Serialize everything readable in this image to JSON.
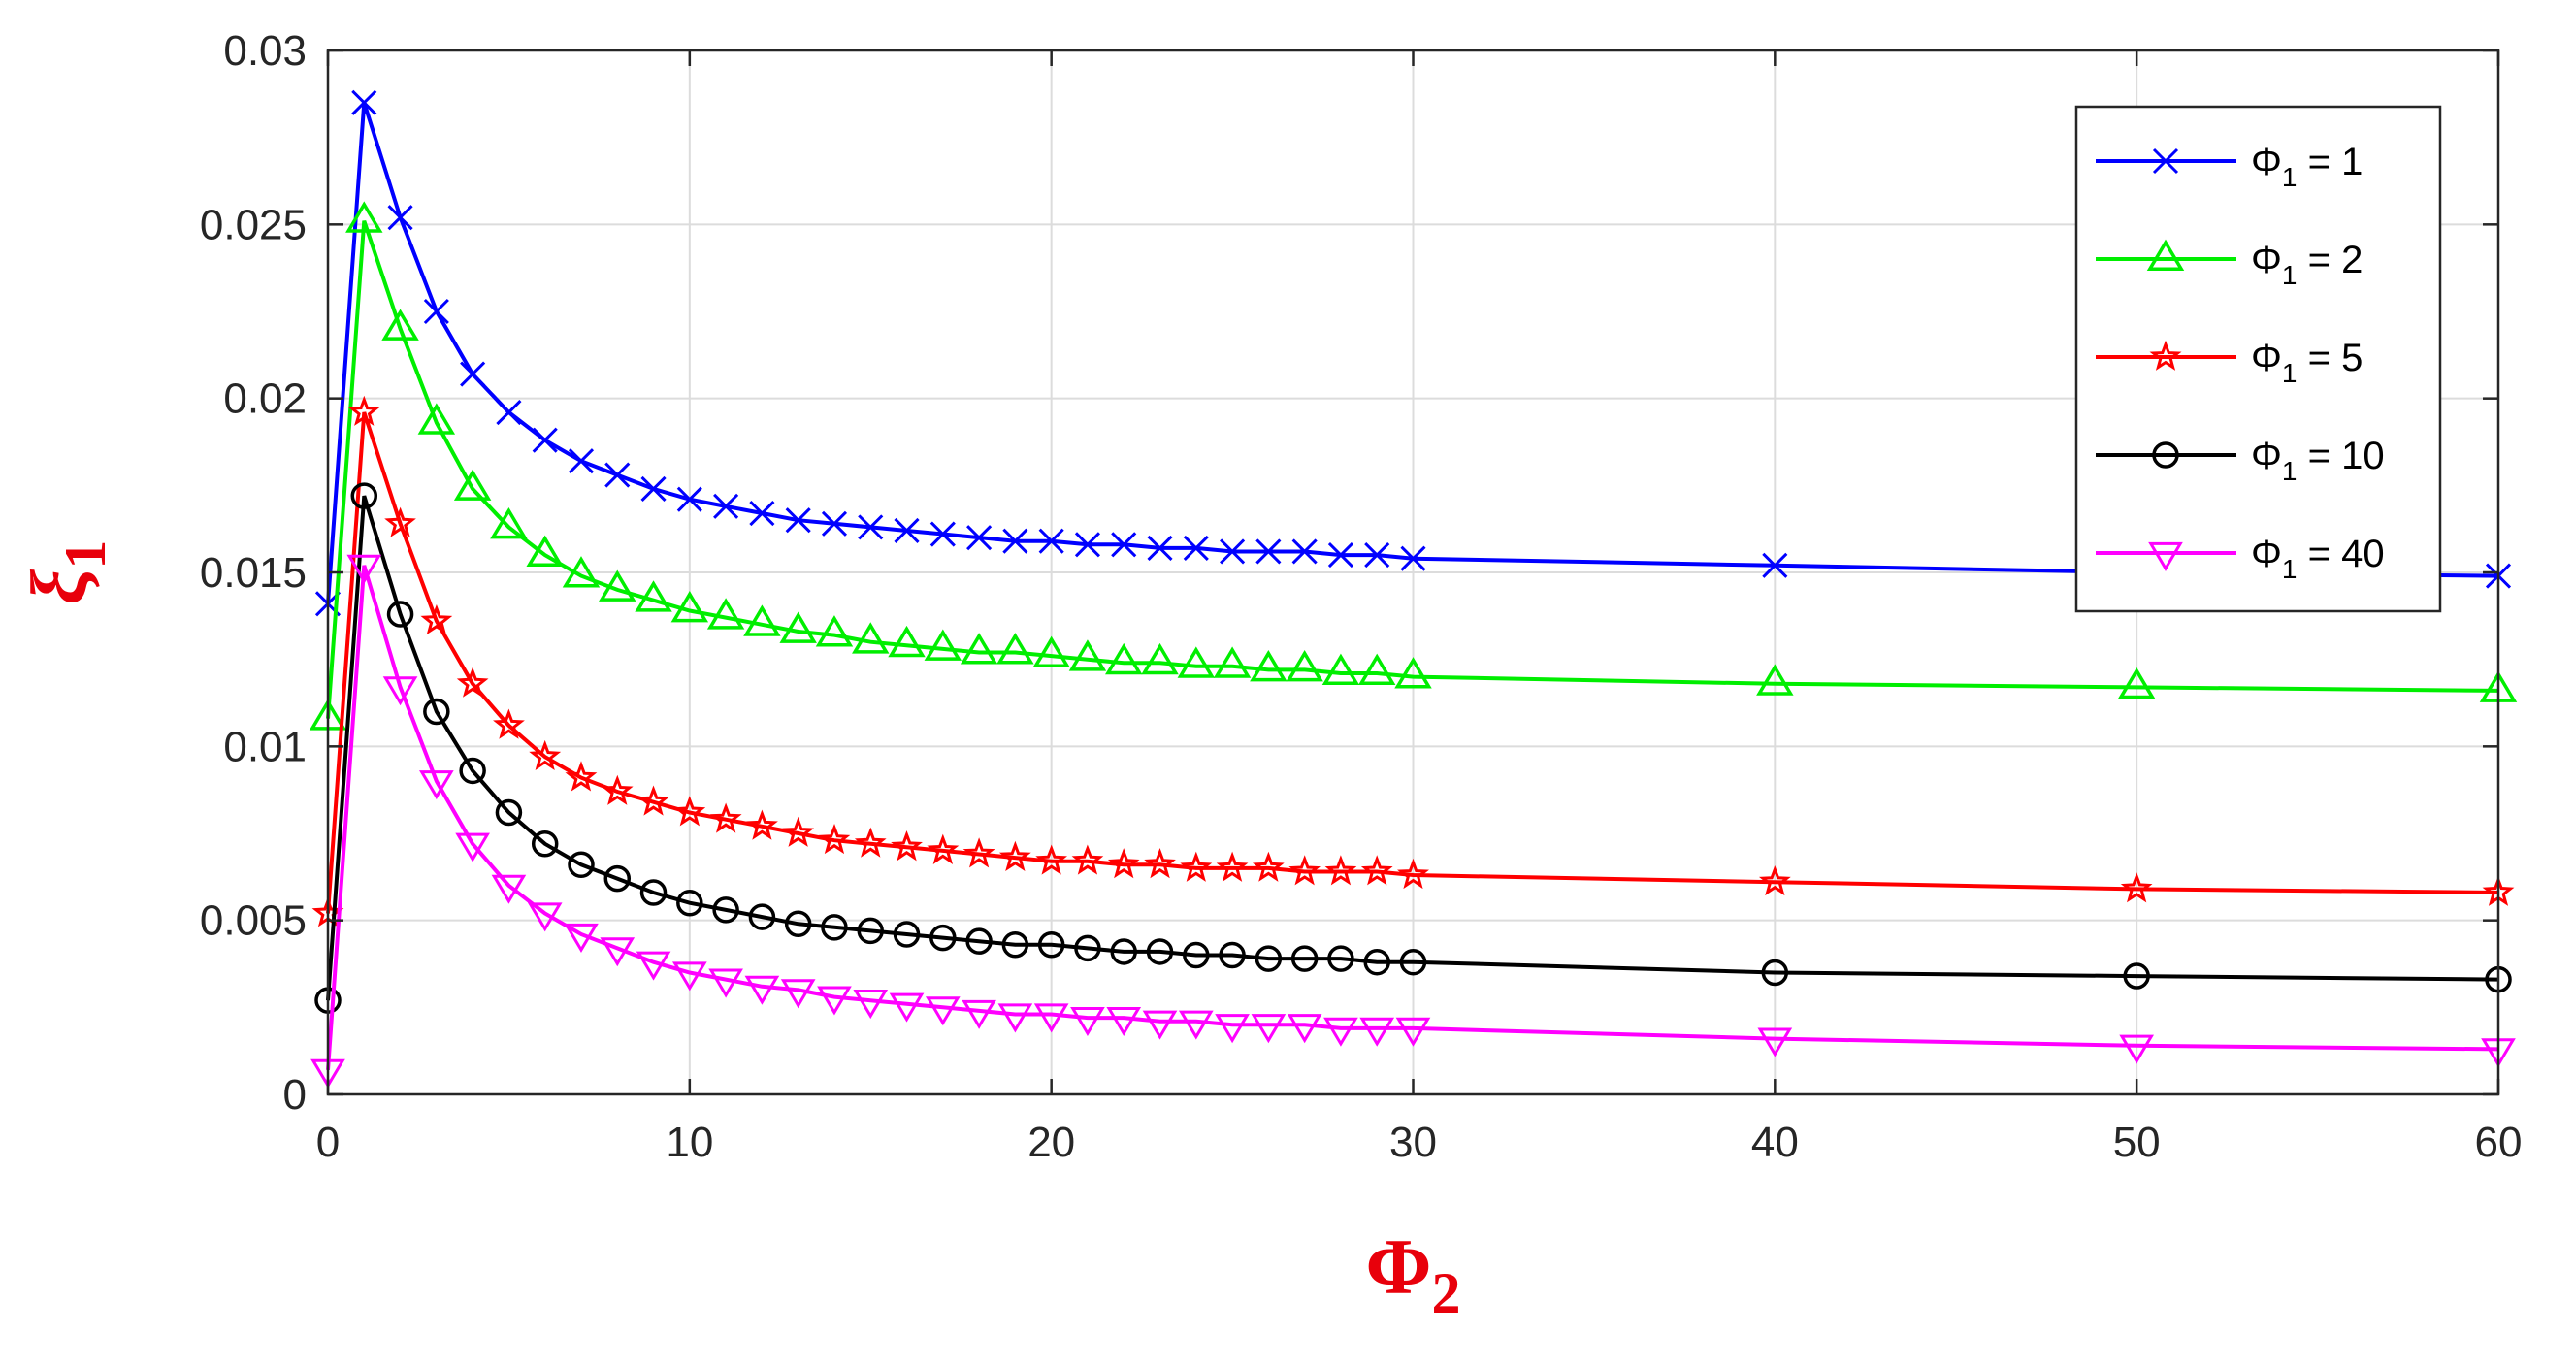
{
  "chart_data": {
    "type": "line",
    "xlabel": "Φ",
    "xlabel_sub": "2",
    "ylabel": "ξ",
    "ylabel_sub": "1",
    "xlim": [
      0,
      60
    ],
    "ylim": [
      0,
      0.03
    ],
    "x_ticks": [
      0,
      10,
      20,
      30,
      40,
      50,
      60
    ],
    "x_tick_labels": [
      "0",
      "10",
      "20",
      "30",
      "40",
      "50",
      "60"
    ],
    "y_ticks": [
      0,
      0.005,
      0.01,
      0.015,
      0.02,
      0.025,
      0.03
    ],
    "y_tick_labels": [
      "0",
      "0.005",
      "0.01",
      "0.015",
      "0.02",
      "0.025",
      "0.03"
    ],
    "grid": true,
    "legend_position": "top-right",
    "x": [
      0,
      1,
      2,
      3,
      4,
      5,
      6,
      7,
      8,
      9,
      10,
      11,
      12,
      13,
      14,
      15,
      16,
      17,
      18,
      19,
      20,
      21,
      22,
      23,
      24,
      25,
      26,
      27,
      28,
      29,
      30,
      40,
      50,
      60
    ],
    "series": [
      {
        "name": "Φ1 = 1",
        "legend_main": "Φ",
        "legend_sub": "1",
        "legend_tail": " = 1",
        "color": "#0000ff",
        "marker": "x",
        "values": [
          0.0141,
          0.0285,
          0.0252,
          0.0225,
          0.0207,
          0.0196,
          0.0188,
          0.0182,
          0.0178,
          0.0174,
          0.0171,
          0.0169,
          0.0167,
          0.0165,
          0.0164,
          0.0163,
          0.0162,
          0.0161,
          0.016,
          0.0159,
          0.0159,
          0.0158,
          0.0158,
          0.0157,
          0.0157,
          0.0156,
          0.0156,
          0.0156,
          0.0155,
          0.0155,
          0.0154,
          0.0152,
          0.015,
          0.0149
        ]
      },
      {
        "name": "Φ1 = 2",
        "legend_main": "Φ",
        "legend_sub": "1",
        "legend_tail": " = 2",
        "color": "#00ee00",
        "marker": "triangle-up",
        "values": [
          0.0108,
          0.0251,
          0.022,
          0.0193,
          0.0174,
          0.0163,
          0.0155,
          0.0149,
          0.0145,
          0.0142,
          0.0139,
          0.0137,
          0.0135,
          0.0133,
          0.0132,
          0.013,
          0.0129,
          0.0128,
          0.0127,
          0.0127,
          0.0126,
          0.0125,
          0.0124,
          0.0124,
          0.0123,
          0.0123,
          0.0122,
          0.0122,
          0.0121,
          0.0121,
          0.012,
          0.0118,
          0.0117,
          0.0116
        ]
      },
      {
        "name": "Φ1 = 5",
        "legend_main": "Φ",
        "legend_sub": "1",
        "legend_tail": " = 5",
        "color": "#ff0000",
        "marker": "star",
        "values": [
          0.0052,
          0.0196,
          0.0164,
          0.0136,
          0.0118,
          0.0106,
          0.0097,
          0.0091,
          0.0087,
          0.0084,
          0.0081,
          0.0079,
          0.0077,
          0.0075,
          0.0073,
          0.0072,
          0.0071,
          0.007,
          0.0069,
          0.0068,
          0.0067,
          0.0067,
          0.0066,
          0.0066,
          0.0065,
          0.0065,
          0.0065,
          0.0064,
          0.0064,
          0.0064,
          0.0063,
          0.0061,
          0.0059,
          0.0058
        ]
      },
      {
        "name": "Φ1 = 10",
        "legend_main": "Φ",
        "legend_sub": "1",
        "legend_tail": " = 10",
        "color": "#000000",
        "marker": "circle",
        "values": [
          0.0027,
          0.0172,
          0.0138,
          0.011,
          0.0093,
          0.0081,
          0.0072,
          0.0066,
          0.0062,
          0.0058,
          0.0055,
          0.0053,
          0.0051,
          0.0049,
          0.0048,
          0.0047,
          0.0046,
          0.0045,
          0.0044,
          0.0043,
          0.0043,
          0.0042,
          0.0041,
          0.0041,
          0.004,
          0.004,
          0.0039,
          0.0039,
          0.0039,
          0.0038,
          0.0038,
          0.0035,
          0.0034,
          0.0033
        ]
      },
      {
        "name": "Φ1 = 40",
        "legend_main": "Φ",
        "legend_sub": "1",
        "legend_tail": " = 40",
        "color": "#ff00ff",
        "marker": "triangle-down",
        "values": [
          0.0007,
          0.0152,
          0.0117,
          0.009,
          0.0072,
          0.006,
          0.0052,
          0.0046,
          0.0042,
          0.0038,
          0.0035,
          0.0033,
          0.0031,
          0.003,
          0.0028,
          0.0027,
          0.0026,
          0.0025,
          0.0024,
          0.0023,
          0.0023,
          0.0022,
          0.0022,
          0.0021,
          0.0021,
          0.002,
          0.002,
          0.002,
          0.0019,
          0.0019,
          0.0019,
          0.0016,
          0.0014,
          0.0013
        ]
      }
    ]
  }
}
